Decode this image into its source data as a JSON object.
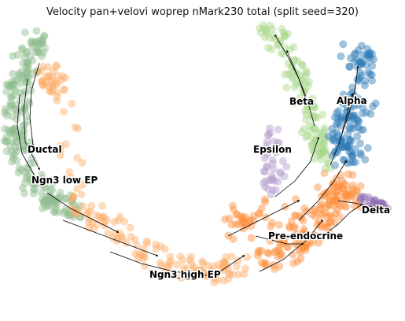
{
  "title": "Velocity pan+velovi woprep nMark230 total (split seed=320)",
  "chart_data": {
    "type": "scatter",
    "title": "Velocity pan+velovi woprep nMark230 total (split seed=320)",
    "xlabel": "",
    "ylabel": "",
    "axes_visible": false,
    "grid": false,
    "legend": "on data",
    "overlay": "velocity streamlines with arrowheads",
    "clusters": [
      {
        "name": "Ductal",
        "color": "#8fbc8f"
      },
      {
        "name": "Ngn3 low EP",
        "color": "#8fbc8f"
      },
      {
        "name": "Ngn3 high EP",
        "color": "#fdae6b"
      },
      {
        "name": "Pre-endocrine",
        "color": "#fd8d3c"
      },
      {
        "name": "Beta",
        "color": "#a8d68a"
      },
      {
        "name": "Alpha",
        "color": "#2c7bb6"
      },
      {
        "name": "Delta",
        "color": "#8c6bb1"
      },
      {
        "name": "Epsilon",
        "color": "#b39dcb"
      }
    ]
  }
}
